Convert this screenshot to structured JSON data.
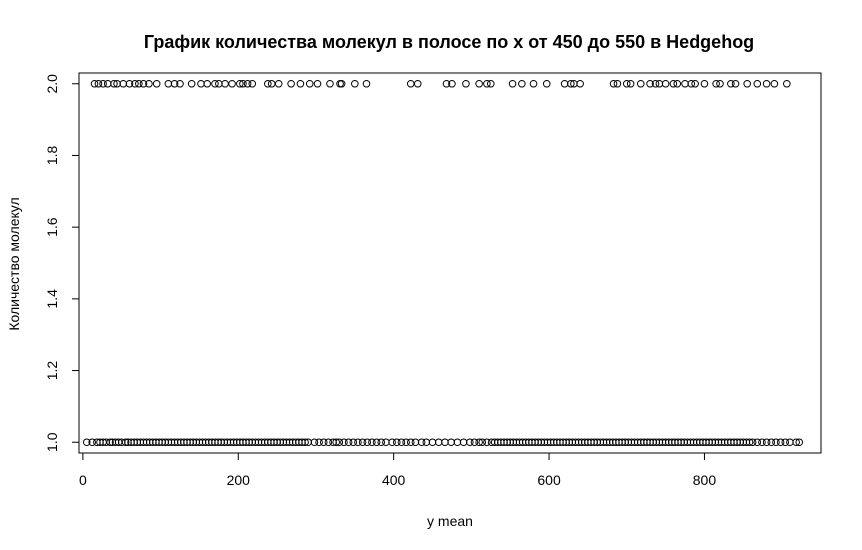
{
  "chart_data": {
    "type": "scatter",
    "title": "График количества молекул в полосе по x от 450 до 550 в Hedgehog",
    "xlabel": "y mean",
    "ylabel": "Количество молекул",
    "xlim": [
      -5,
      950
    ],
    "ylim": [
      0.97,
      2.03
    ],
    "x_ticks": [
      0,
      200,
      400,
      600,
      800
    ],
    "x_tick_labels": [
      "0",
      "200",
      "400",
      "600",
      "800"
    ],
    "y_ticks": [
      1.0,
      1.2,
      1.4,
      1.6,
      1.8,
      2.0
    ],
    "y_tick_labels": [
      "1.0",
      "1.2",
      "1.4",
      "1.6",
      "1.8",
      "2.0"
    ],
    "grid": false,
    "marker": "open-circle",
    "point_color": "#000000",
    "series": [
      {
        "values_at_2": [
          15,
          20,
          26,
          32,
          40,
          44,
          52,
          60,
          67,
          72,
          78,
          85,
          95,
          110,
          118,
          125,
          140,
          152,
          160,
          170,
          175,
          183,
          192,
          202,
          206,
          212,
          218,
          238,
          243,
          252,
          268,
          280,
          292,
          302,
          318,
          331,
          333,
          350,
          365,
          422,
          431,
          468,
          475,
          493,
          510,
          520,
          525,
          553,
          565,
          580,
          597,
          620,
          628,
          632,
          640,
          683,
          688,
          700,
          705,
          718,
          730,
          737,
          742,
          750,
          760,
          765,
          775,
          783,
          788,
          800,
          815,
          820,
          834,
          840,
          855,
          868,
          880,
          890,
          906
        ]
      },
      {
        "values_at_1": [
          5,
          12,
          18,
          22,
          26,
          30,
          35,
          38,
          42,
          46,
          50,
          55,
          58,
          62,
          66,
          70,
          74,
          78,
          82,
          86,
          90,
          94,
          98,
          102,
          106,
          110,
          114,
          118,
          122,
          126,
          130,
          134,
          138,
          142,
          146,
          150,
          154,
          158,
          162,
          166,
          170,
          174,
          178,
          182,
          186,
          190,
          194,
          198,
          202,
          206,
          210,
          214,
          218,
          222,
          226,
          230,
          234,
          238,
          242,
          246,
          250,
          254,
          258,
          262,
          266,
          270,
          274,
          278,
          282,
          286,
          290,
          298,
          304,
          310,
          316,
          322,
          326,
          330,
          336,
          342,
          348,
          354,
          360,
          366,
          372,
          378,
          384,
          390,
          398,
          404,
          410,
          416,
          422,
          428,
          436,
          442,
          450,
          458,
          466,
          474,
          482,
          490,
          498,
          504,
          510,
          514,
          520,
          526,
          530,
          534,
          538,
          542,
          546,
          550,
          554,
          558,
          562,
          566,
          570,
          574,
          578,
          582,
          586,
          590,
          594,
          598,
          602,
          606,
          610,
          614,
          618,
          622,
          626,
          630,
          634,
          638,
          642,
          646,
          650,
          654,
          658,
          662,
          666,
          670,
          674,
          678,
          682,
          686,
          690,
          694,
          698,
          702,
          706,
          710,
          714,
          718,
          722,
          726,
          730,
          734,
          738,
          742,
          746,
          750,
          754,
          758,
          762,
          766,
          770,
          774,
          778,
          782,
          786,
          790,
          794,
          798,
          802,
          806,
          810,
          814,
          818,
          822,
          826,
          830,
          834,
          838,
          842,
          846,
          850,
          854,
          858,
          862,
          868,
          874,
          880,
          886,
          892,
          898,
          904,
          910,
          918,
          922
        ]
      }
    ]
  }
}
